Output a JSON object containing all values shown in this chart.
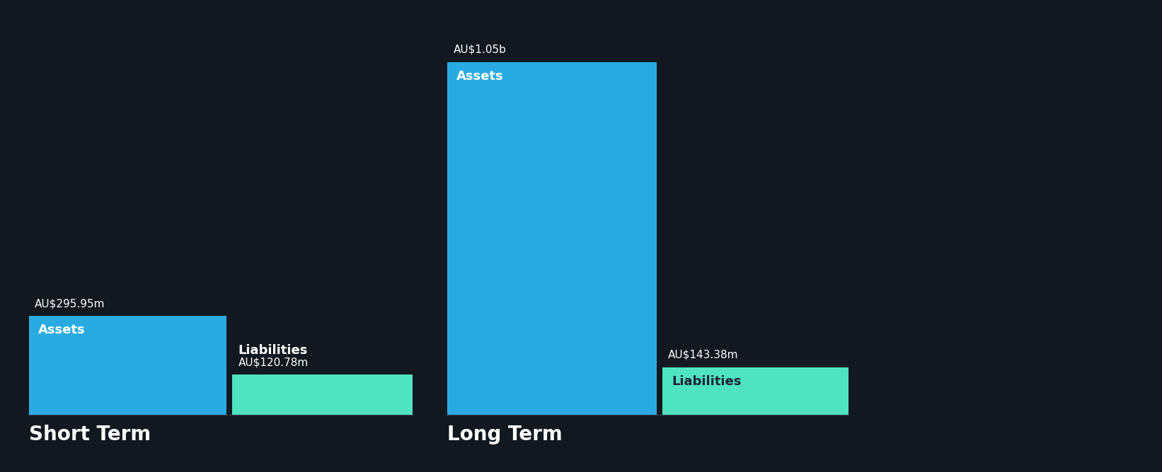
{
  "background_color": "#12181f",
  "bar_color_assets": "#29abe2",
  "bar_color_liabilities": "#50e3c2",
  "text_color_white": "#ffffff",
  "text_color_dark": "#1a2535",
  "groups": [
    {
      "name": "Short Term",
      "assets_value": 295.95,
      "liabilities_value": 120.78,
      "assets_label": "AU$295.95m",
      "liabilities_label": "AU$120.78m"
    },
    {
      "name": "Long Term",
      "assets_value": 1050.0,
      "liabilities_value": 143.38,
      "assets_label": "AU$1.05b",
      "liabilities_label": "AU$143.38m"
    }
  ],
  "figsize": [
    16.42,
    6.68
  ],
  "dpi": 100,
  "ylim_max": 1150,
  "baseline_y": 0,
  "bar_color_assets_hex": "#29abe2",
  "bar_color_liabilities_hex": "#50e3c2",
  "axis_line_color": "#3a4455",
  "label_fontsize": 11,
  "inside_label_fontsize": 13,
  "group_label_fontsize": 20
}
